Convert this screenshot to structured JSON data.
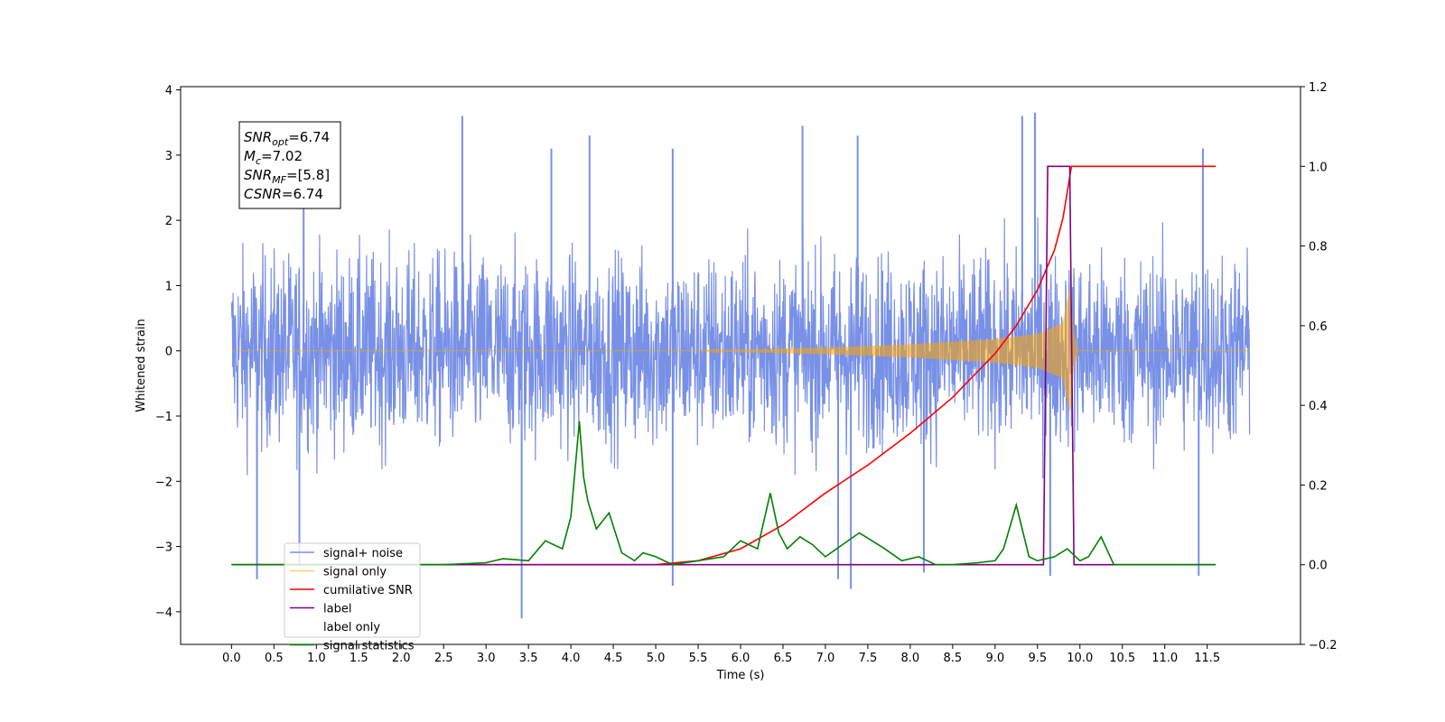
{
  "chart_data": {
    "type": "line",
    "title": "",
    "xlabel": "Time (s)",
    "ylabel": "Whitened strain",
    "ylabel_right": "",
    "xlim": [
      -0.6,
      12.6
    ],
    "ylim": [
      -4.5,
      4.05
    ],
    "ylim_right": [
      -0.2,
      1.2
    ],
    "grid": false,
    "legend_position": "lower-left",
    "x_ticks": [
      0.0,
      0.5,
      1.0,
      1.5,
      2.0,
      2.5,
      3.0,
      3.5,
      4.0,
      4.5,
      5.0,
      5.5,
      6.0,
      6.5,
      7.0,
      7.5,
      8.0,
      8.5,
      9.0,
      9.5,
      10.0,
      10.5,
      11.0,
      11.5
    ],
    "x_tick_labels": [
      "0.0",
      "0.5",
      "1.0",
      "1.5",
      "2.0",
      "2.5",
      "3.0",
      "3.5",
      "4.0",
      "4.5",
      "5.0",
      "5.5",
      "6.0",
      "6.5",
      "7.0",
      "7.5",
      "8.0",
      "8.5",
      "9.0",
      "9.5",
      "10.0",
      "10.5",
      "11.0",
      "11.5"
    ],
    "y_ticks_left": [
      4,
      3,
      2,
      1,
      0,
      -1,
      -2,
      -3,
      -4
    ],
    "y_tick_labels_left": [
      "4",
      "3",
      "2",
      "1",
      "0",
      "−1",
      "−2",
      "−3",
      "−4"
    ],
    "y_ticks_right": [
      1.2,
      1.0,
      0.8,
      0.6,
      0.4,
      0.2,
      0.0,
      -0.2
    ],
    "y_tick_labels_right": [
      "1.2",
      "1.0",
      "0.8",
      "0.6",
      "0.4",
      "0.2",
      "0.0",
      "−0.2"
    ],
    "annotation": {
      "lines": [
        {
          "base": "SNR",
          "sub": "opt",
          "rest": "=6.74"
        },
        {
          "base": "M",
          "sub": "c",
          "rest": "=7.02"
        },
        {
          "base": "SNR",
          "sub": "MF",
          "rest": "=[5.8]"
        },
        {
          "base": "CSNR",
          "sub": "",
          "rest": "=6.74"
        }
      ]
    },
    "series": [
      {
        "name": "signal+ noise",
        "axis": "left",
        "color": "#7890e6",
        "kind": "noise_band",
        "x_range": [
          0.0,
          12.0
        ],
        "typical_upper": 1.5,
        "typical_lower": -1.6,
        "peaks": [
          {
            "x": 0.85,
            "y": 3.5
          },
          {
            "x": 2.72,
            "y": 3.6
          },
          {
            "x": 3.77,
            "y": 3.1
          },
          {
            "x": 4.22,
            "y": 3.3
          },
          {
            "x": 5.2,
            "y": 3.1
          },
          {
            "x": 6.73,
            "y": 3.45
          },
          {
            "x": 7.38,
            "y": 3.3
          },
          {
            "x": 9.32,
            "y": 3.6
          },
          {
            "x": 9.47,
            "y": 3.65
          },
          {
            "x": 11.45,
            "y": 3.1
          }
        ],
        "troughs": [
          {
            "x": 0.3,
            "y": -3.5
          },
          {
            "x": 0.8,
            "y": -3.3
          },
          {
            "x": 3.42,
            "y": -4.1
          },
          {
            "x": 5.2,
            "y": -3.6
          },
          {
            "x": 7.15,
            "y": -3.5
          },
          {
            "x": 7.3,
            "y": -3.65
          },
          {
            "x": 8.16,
            "y": -3.4
          },
          {
            "x": 9.65,
            "y": -3.45
          },
          {
            "x": 11.4,
            "y": -3.45
          }
        ]
      },
      {
        "name": "signal only",
        "axis": "left",
        "color": "#ffa500",
        "kind": "chirp",
        "x_start": 0.0,
        "x_merger": 9.9,
        "x_end": 12.0,
        "envelope": [
          [
            5.5,
            0.0
          ],
          [
            6.0,
            0.02
          ],
          [
            7.0,
            0.05
          ],
          [
            8.0,
            0.1
          ],
          [
            9.0,
            0.18
          ],
          [
            9.5,
            0.26
          ],
          [
            9.8,
            0.42
          ],
          [
            9.88,
            0.95
          ],
          [
            9.93,
            0.25
          ],
          [
            9.98,
            0.0
          ]
        ]
      },
      {
        "name": "cumilative SNR",
        "axis": "right",
        "color": "#ff0000",
        "x": [
          0.0,
          5.0,
          5.5,
          6.0,
          6.5,
          7.0,
          7.5,
          8.0,
          8.5,
          9.0,
          9.25,
          9.5,
          9.7,
          9.8,
          9.9,
          10.0,
          11.0,
          11.6
        ],
        "y": [
          0.0,
          0.0,
          0.01,
          0.04,
          0.1,
          0.18,
          0.25,
          0.33,
          0.42,
          0.53,
          0.6,
          0.69,
          0.79,
          0.87,
          1.0,
          1.0,
          1.0,
          1.0
        ]
      },
      {
        "name": "label",
        "axis": "right",
        "color": "#800080",
        "x": [
          0.0,
          9.57,
          9.62,
          9.88,
          9.93,
          11.6
        ],
        "y": [
          0.0,
          0.0,
          1.0,
          1.0,
          0.0,
          0.0
        ]
      },
      {
        "name": "label only",
        "axis": "right",
        "color": "#ffffff",
        "x": [],
        "y": []
      },
      {
        "name": "signal statistics",
        "axis": "right",
        "color": "#008000",
        "x": [
          0.0,
          2.5,
          3.0,
          3.2,
          3.5,
          3.7,
          3.9,
          4.0,
          4.1,
          4.15,
          4.2,
          4.3,
          4.45,
          4.6,
          4.75,
          4.85,
          5.0,
          5.2,
          5.5,
          5.8,
          6.0,
          6.2,
          6.35,
          6.45,
          6.55,
          6.7,
          6.85,
          7.0,
          7.2,
          7.4,
          7.55,
          7.7,
          7.9,
          8.1,
          8.3,
          8.5,
          8.8,
          9.0,
          9.1,
          9.25,
          9.4,
          9.5,
          9.7,
          9.85,
          10.0,
          10.1,
          10.25,
          10.4,
          10.6,
          11.6
        ],
        "y": [
          0.0,
          0.0,
          0.005,
          0.015,
          0.01,
          0.06,
          0.04,
          0.12,
          0.36,
          0.22,
          0.16,
          0.09,
          0.13,
          0.03,
          0.01,
          0.03,
          0.02,
          0.0,
          0.01,
          0.02,
          0.06,
          0.04,
          0.18,
          0.08,
          0.04,
          0.07,
          0.05,
          0.02,
          0.05,
          0.08,
          0.06,
          0.04,
          0.01,
          0.02,
          0.0,
          0.0,
          0.005,
          0.01,
          0.04,
          0.15,
          0.02,
          0.01,
          0.02,
          0.04,
          0.01,
          0.02,
          0.07,
          0.0,
          0.0,
          0.0
        ]
      }
    ]
  }
}
